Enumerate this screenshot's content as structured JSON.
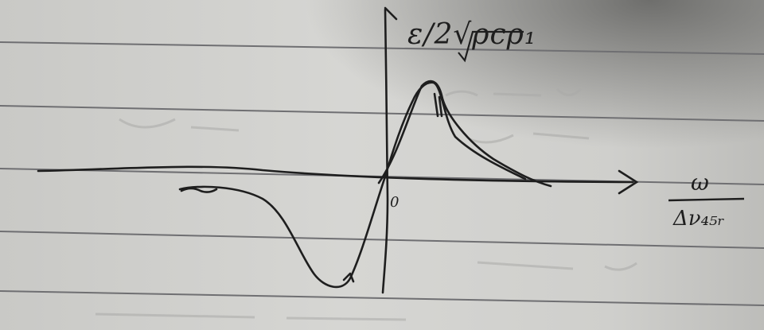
{
  "sketch": {
    "y_axis_label": "ε/2√ρcρ₁",
    "x_axis_label_numerator": "ω",
    "x_axis_label_denominator": "Δν₄₅ᵣ",
    "origin_label": "0"
  },
  "colors": {
    "paper": "#d3d3d0",
    "paper_shadow": "#8d8d8b",
    "ruled_line": "#6f6f72",
    "ink": "#1e1e1e"
  }
}
